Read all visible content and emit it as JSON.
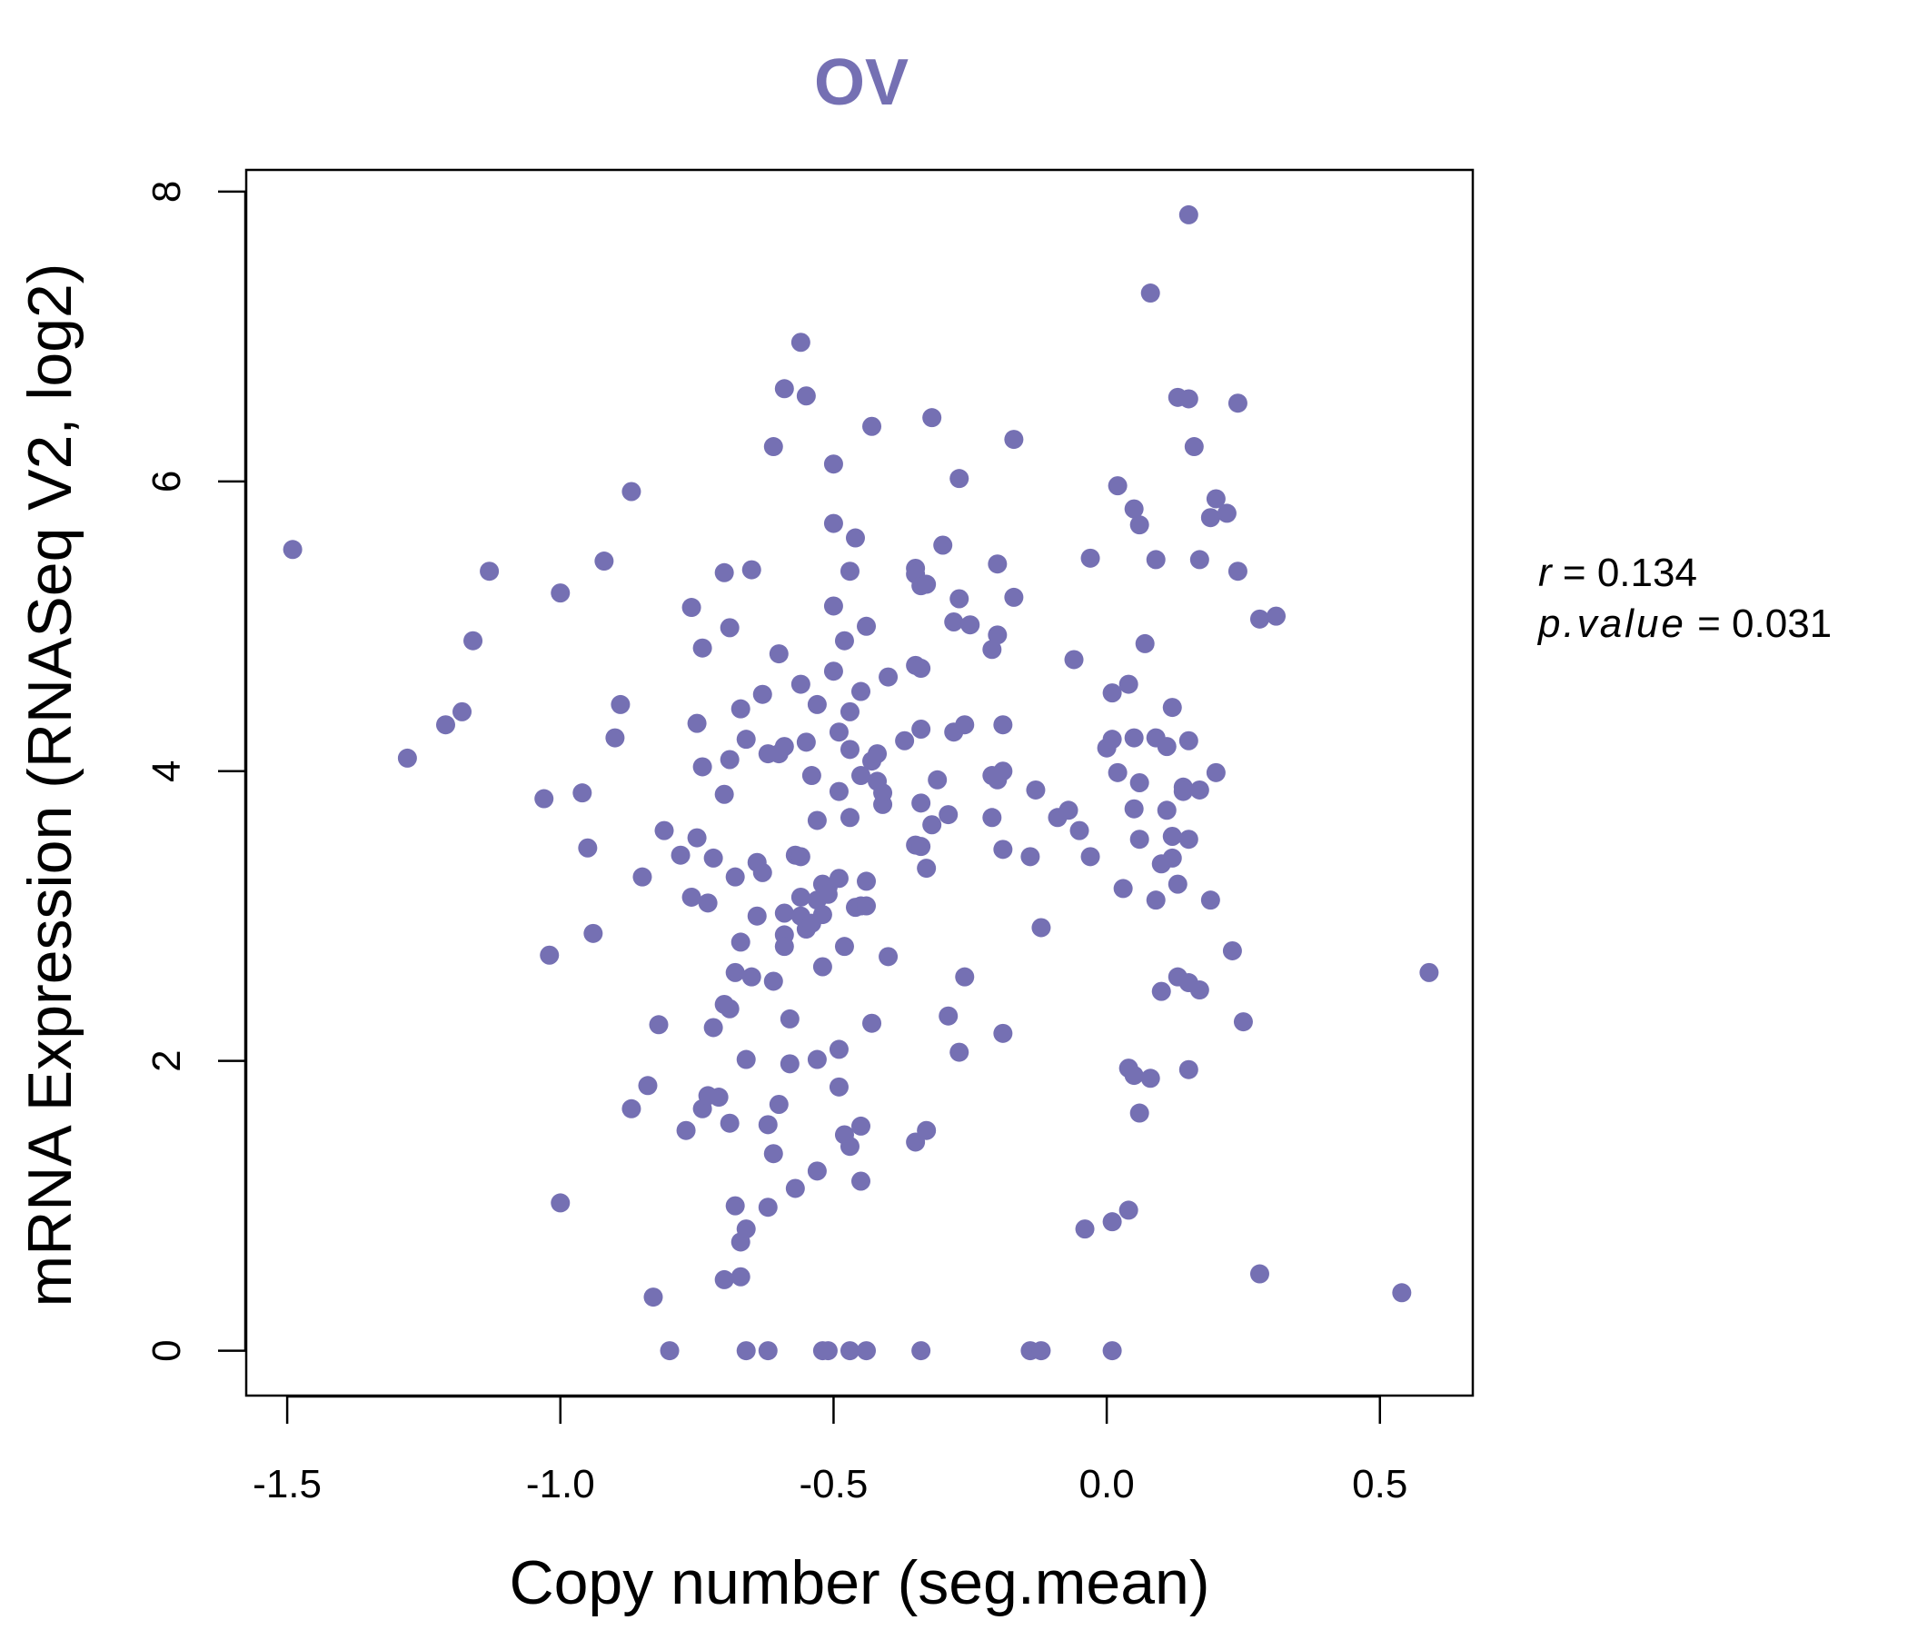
{
  "chart_data": {
    "type": "scatter",
    "title": "OV",
    "xlabel": "Copy number (seg.mean)",
    "ylabel": "mRNA Expression (RNASeq V2, log2)",
    "xlim": [
      -1.575,
      0.67
    ],
    "ylim": [
      -0.31,
      8.15
    ],
    "x_ticks": [
      -1.5,
      -1.0,
      -0.5,
      0.0,
      0.5
    ],
    "x_tick_labels": [
      "-1.5",
      "-1.0",
      "-0.5",
      "0.0",
      "0.5"
    ],
    "y_ticks": [
      0,
      2,
      4,
      6,
      8
    ],
    "y_tick_labels": [
      "0",
      "2",
      "4",
      "6",
      "8"
    ],
    "grid": false,
    "legend": "none",
    "point_color": "#7570b3",
    "title_color": "#7570b3",
    "annotation": {
      "r_label": "r",
      "r_value": "0.134",
      "p_label": "p.value",
      "p_value": "0.031"
    },
    "points": [
      [
        -1.49,
        5.53
      ],
      [
        -1.28,
        4.09
      ],
      [
        -1.21,
        4.32
      ],
      [
        -1.18,
        4.41
      ],
      [
        -1.16,
        4.9
      ],
      [
        -1.13,
        5.38
      ],
      [
        -1.03,
        3.81
      ],
      [
        -1.02,
        2.73
      ],
      [
        -1.0,
        5.23
      ],
      [
        -1.0,
        1.02
      ],
      [
        -0.96,
        3.85
      ],
      [
        -0.95,
        3.47
      ],
      [
        -0.94,
        2.88
      ],
      [
        -0.92,
        5.45
      ],
      [
        -0.9,
        4.23
      ],
      [
        -0.89,
        4.46
      ],
      [
        -0.87,
        5.93
      ],
      [
        -0.87,
        1.67
      ],
      [
        -0.85,
        3.27
      ],
      [
        -0.84,
        1.83
      ],
      [
        -0.83,
        0.37
      ],
      [
        -0.82,
        2.25
      ],
      [
        -0.81,
        3.59
      ],
      [
        -0.8,
        0.0
      ],
      [
        -0.78,
        3.42
      ],
      [
        -0.77,
        1.52
      ],
      [
        -0.76,
        5.13
      ],
      [
        -0.76,
        3.13
      ],
      [
        -0.75,
        4.33
      ],
      [
        -0.75,
        3.54
      ],
      [
        -0.74,
        4.85
      ],
      [
        -0.74,
        4.03
      ],
      [
        -0.74,
        1.67
      ],
      [
        -0.73,
        3.09
      ],
      [
        -0.73,
        1.76
      ],
      [
        -0.72,
        3.4
      ],
      [
        -0.72,
        2.23
      ],
      [
        -0.71,
        1.75
      ],
      [
        -0.7,
        2.39
      ],
      [
        -0.7,
        0.49
      ],
      [
        -0.7,
        5.37
      ],
      [
        -0.7,
        3.84
      ],
      [
        -0.69,
        4.08
      ],
      [
        -0.69,
        2.36
      ],
      [
        -0.69,
        1.57
      ],
      [
        -0.69,
        4.99
      ],
      [
        -0.68,
        2.61
      ],
      [
        -0.68,
        3.27
      ],
      [
        -0.68,
        1.0
      ],
      [
        -0.67,
        0.51
      ],
      [
        -0.67,
        0.75
      ],
      [
        -0.67,
        2.82
      ],
      [
        -0.67,
        4.43
      ],
      [
        -0.66,
        0.84
      ],
      [
        -0.66,
        2.01
      ],
      [
        -0.66,
        4.22
      ],
      [
        -0.66,
        0.0
      ],
      [
        -0.65,
        5.39
      ],
      [
        -0.65,
        2.58
      ],
      [
        -0.64,
        3.37
      ],
      [
        -0.64,
        3.0
      ],
      [
        -0.63,
        4.53
      ],
      [
        -0.63,
        3.3
      ],
      [
        -0.62,
        1.56
      ],
      [
        -0.62,
        0.99
      ],
      [
        -0.62,
        0.0
      ],
      [
        -0.62,
        4.12
      ],
      [
        -0.61,
        6.24
      ],
      [
        -0.61,
        1.36
      ],
      [
        -0.61,
        2.55
      ],
      [
        -0.6,
        4.81
      ],
      [
        -0.6,
        1.7
      ],
      [
        -0.6,
        4.12
      ],
      [
        -0.59,
        3.02
      ],
      [
        -0.59,
        2.87
      ],
      [
        -0.59,
        4.17
      ],
      [
        -0.59,
        2.79
      ],
      [
        -0.59,
        6.64
      ],
      [
        -0.58,
        2.29
      ],
      [
        -0.58,
        1.98
      ],
      [
        -0.57,
        1.12
      ],
      [
        -0.57,
        3.42
      ],
      [
        -0.56,
        6.96
      ],
      [
        -0.56,
        3.41
      ],
      [
        -0.56,
        4.6
      ],
      [
        -0.56,
        3.13
      ],
      [
        -0.56,
        3.0
      ],
      [
        -0.55,
        6.59
      ],
      [
        -0.55,
        4.2
      ],
      [
        -0.55,
        2.91
      ],
      [
        -0.54,
        2.95
      ],
      [
        -0.54,
        3.97
      ],
      [
        -0.53,
        2.01
      ],
      [
        -0.53,
        1.24
      ],
      [
        -0.53,
        3.11
      ],
      [
        -0.53,
        4.46
      ],
      [
        -0.53,
        3.66
      ],
      [
        -0.52,
        3.01
      ],
      [
        -0.52,
        3.22
      ],
      [
        -0.52,
        2.65
      ],
      [
        -0.52,
        0.0
      ],
      [
        -0.51,
        3.2
      ],
      [
        -0.51,
        0.0
      ],
      [
        -0.51,
        3.15
      ],
      [
        -0.5,
        6.12
      ],
      [
        -0.5,
        5.14
      ],
      [
        -0.5,
        5.71
      ],
      [
        -0.5,
        4.69
      ],
      [
        -0.49,
        4.27
      ],
      [
        -0.49,
        3.26
      ],
      [
        -0.49,
        2.08
      ],
      [
        -0.49,
        3.86
      ],
      [
        -0.49,
        1.82
      ],
      [
        -0.48,
        2.79
      ],
      [
        -0.48,
        1.49
      ],
      [
        -0.48,
        4.9
      ],
      [
        -0.47,
        0.0
      ],
      [
        -0.47,
        5.38
      ],
      [
        -0.47,
        1.41
      ],
      [
        -0.47,
        3.68
      ],
      [
        -0.47,
        4.41
      ],
      [
        -0.47,
        4.15
      ],
      [
        -0.46,
        5.61
      ],
      [
        -0.46,
        3.06
      ],
      [
        -0.45,
        1.17
      ],
      [
        -0.45,
        3.07
      ],
      [
        -0.45,
        1.55
      ],
      [
        -0.45,
        3.97
      ],
      [
        -0.45,
        4.55
      ],
      [
        -0.44,
        0.0
      ],
      [
        -0.44,
        5.0
      ],
      [
        -0.44,
        3.24
      ],
      [
        -0.44,
        3.07
      ],
      [
        -0.43,
        4.07
      ],
      [
        -0.43,
        6.38
      ],
      [
        -0.43,
        2.26
      ],
      [
        -0.42,
        3.93
      ],
      [
        -0.42,
        4.12
      ],
      [
        -0.41,
        3.77
      ],
      [
        -0.41,
        3.85
      ],
      [
        -0.4,
        4.65
      ],
      [
        -0.4,
        2.72
      ],
      [
        -0.37,
        4.21
      ],
      [
        -0.35,
        4.73
      ],
      [
        -0.35,
        3.49
      ],
      [
        -0.35,
        1.44
      ],
      [
        -0.35,
        5.4
      ],
      [
        -0.35,
        5.36
      ],
      [
        -0.34,
        4.29
      ],
      [
        -0.34,
        3.48
      ],
      [
        -0.34,
        0.0
      ],
      [
        -0.34,
        5.28
      ],
      [
        -0.34,
        4.71
      ],
      [
        -0.34,
        3.78
      ],
      [
        -0.33,
        3.33
      ],
      [
        -0.33,
        1.52
      ],
      [
        -0.33,
        5.29
      ],
      [
        -0.32,
        3.63
      ],
      [
        -0.32,
        6.44
      ],
      [
        -0.31,
        3.94
      ],
      [
        -0.3,
        5.56
      ],
      [
        -0.29,
        2.31
      ],
      [
        -0.29,
        3.7
      ],
      [
        -0.28,
        4.27
      ],
      [
        -0.28,
        5.03
      ],
      [
        -0.27,
        5.19
      ],
      [
        -0.27,
        6.02
      ],
      [
        -0.27,
        2.06
      ],
      [
        -0.26,
        4.32
      ],
      [
        -0.26,
        2.58
      ],
      [
        -0.25,
        5.01
      ],
      [
        -0.21,
        3.97
      ],
      [
        -0.21,
        4.84
      ],
      [
        -0.21,
        3.68
      ],
      [
        -0.2,
        4.94
      ],
      [
        -0.2,
        5.43
      ],
      [
        -0.2,
        3.94
      ],
      [
        -0.19,
        4.0
      ],
      [
        -0.19,
        4.32
      ],
      [
        -0.19,
        3.46
      ],
      [
        -0.19,
        2.19
      ],
      [
        -0.17,
        6.29
      ],
      [
        -0.17,
        5.2
      ],
      [
        -0.14,
        3.41
      ],
      [
        -0.14,
        0.0
      ],
      [
        -0.13,
        3.87
      ],
      [
        -0.12,
        2.92
      ],
      [
        -0.12,
        0.0
      ],
      [
        -0.09,
        3.68
      ],
      [
        -0.07,
        3.73
      ],
      [
        -0.06,
        4.77
      ],
      [
        -0.05,
        3.59
      ],
      [
        -0.04,
        0.84
      ],
      [
        -0.03,
        5.47
      ],
      [
        -0.03,
        3.41
      ],
      [
        0.0,
        4.16
      ],
      [
        0.01,
        4.22
      ],
      [
        0.01,
        0.89
      ],
      [
        0.01,
        0.0
      ],
      [
        0.01,
        4.54
      ],
      [
        0.02,
        5.97
      ],
      [
        0.02,
        3.99
      ],
      [
        0.03,
        3.19
      ],
      [
        0.04,
        0.97
      ],
      [
        0.04,
        4.6
      ],
      [
        0.04,
        1.95
      ],
      [
        0.05,
        3.74
      ],
      [
        0.05,
        4.23
      ],
      [
        0.05,
        1.9
      ],
      [
        0.05,
        5.81
      ],
      [
        0.06,
        5.7
      ],
      [
        0.06,
        1.64
      ],
      [
        0.06,
        3.53
      ],
      [
        0.06,
        3.92
      ],
      [
        0.07,
        4.88
      ],
      [
        0.08,
        7.3
      ],
      [
        0.08,
        1.88
      ],
      [
        0.09,
        3.11
      ],
      [
        0.09,
        5.46
      ],
      [
        0.09,
        4.23
      ],
      [
        0.1,
        2.48
      ],
      [
        0.1,
        3.36
      ],
      [
        0.11,
        4.17
      ],
      [
        0.11,
        3.73
      ],
      [
        0.12,
        3.4
      ],
      [
        0.12,
        4.44
      ],
      [
        0.12,
        3.55
      ],
      [
        0.13,
        6.58
      ],
      [
        0.13,
        3.22
      ],
      [
        0.13,
        2.58
      ],
      [
        0.14,
        3.89
      ],
      [
        0.14,
        3.86
      ],
      [
        0.15,
        3.53
      ],
      [
        0.15,
        2.54
      ],
      [
        0.15,
        6.57
      ],
      [
        0.15,
        4.21
      ],
      [
        0.15,
        1.94
      ],
      [
        0.15,
        7.84
      ],
      [
        0.16,
        6.24
      ],
      [
        0.17,
        5.46
      ],
      [
        0.17,
        3.87
      ],
      [
        0.17,
        2.49
      ],
      [
        0.19,
        5.75
      ],
      [
        0.19,
        3.11
      ],
      [
        0.2,
        5.88
      ],
      [
        0.2,
        3.99
      ],
      [
        0.22,
        5.78
      ],
      [
        0.23,
        2.76
      ],
      [
        0.24,
        6.54
      ],
      [
        0.24,
        5.38
      ],
      [
        0.25,
        2.27
      ],
      [
        0.28,
        5.05
      ],
      [
        0.28,
        0.53
      ],
      [
        0.31,
        5.07
      ],
      [
        0.54,
        0.4
      ],
      [
        0.59,
        2.61
      ]
    ]
  }
}
